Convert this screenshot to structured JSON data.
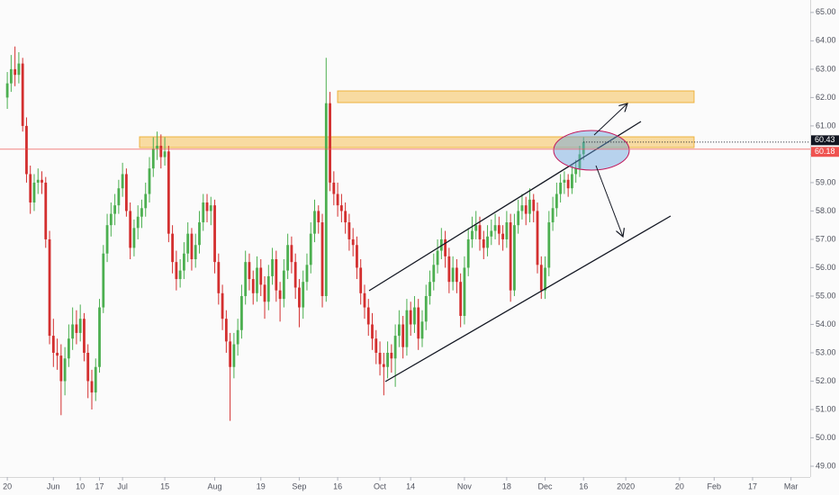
{
  "chart_data": {
    "type": "candlestick",
    "up_color": "#4caf50",
    "down_color": "#d32f2f",
    "open": [
      62.0,
      62.5,
      63.0,
      62.8,
      63.2,
      61.0,
      59.3,
      58.3,
      59.0,
      59.1,
      59.0,
      57.0,
      53.6,
      53.0,
      52.9,
      52.0,
      52.8,
      53.5,
      54.0,
      53.7,
      54.2,
      53.0,
      52.0,
      51.6,
      52.5,
      54.6,
      56.5,
      57.5,
      57.9,
      58.2,
      58.8,
      59.3,
      58.0,
      56.7,
      57.4,
      57.8,
      58.1,
      58.6,
      59.5,
      60.2,
      60.3,
      59.9,
      60.1,
      57.2,
      56.2,
      55.6,
      55.9,
      56.5,
      57.2,
      56.3,
      56.8,
      57.6,
      58.3,
      58.0,
      58.2,
      56.2,
      55.1,
      54.2,
      53.4,
      52.5,
      53.3,
      53.8,
      55.0,
      56.2,
      55.6,
      55.1,
      56.0,
      55.4,
      54.8,
      55.7,
      56.3,
      55.2,
      54.9,
      55.9,
      56.8,
      56.2,
      55.3,
      54.6,
      55.5,
      56.1,
      57.2,
      58.0,
      57.6,
      55.0,
      61.8,
      59.0,
      58.6,
      58.2,
      58.0,
      57.6,
      57.0,
      56.8,
      56.0,
      55.1,
      54.6,
      54.0,
      53.5,
      53.0,
      52.6,
      52.5,
      53.0,
      52.8,
      53.6,
      54.0,
      53.2,
      54.5,
      54.0,
      54.6,
      53.5,
      54.1,
      55.0,
      55.5,
      56.1,
      56.6,
      57.0,
      56.4,
      55.5,
      56.0,
      55.5,
      54.3,
      56.0,
      57.0,
      57.3,
      57.5,
      57.0,
      56.7,
      57.1,
      57.3,
      57.5,
      57.2,
      57.0,
      57.6,
      55.2,
      57.5,
      58.0,
      58.2,
      57.9,
      58.4,
      58.0,
      56.1,
      55.2,
      56.0,
      57.6,
      58.1,
      58.6,
      59.0,
      59.1,
      58.8,
      59.3,
      59.5,
      60.0
    ],
    "high": [
      62.9,
      63.5,
      63.8,
      63.6,
      63.4,
      61.3,
      59.6,
      59.3,
      59.5,
      59.4,
      59.2,
      57.3,
      54.2,
      53.5,
      53.3,
      53.2,
      54.0,
      54.6,
      54.5,
      54.7,
      54.4,
      53.3,
      52.4,
      52.8,
      54.9,
      56.8,
      57.9,
      58.3,
      58.6,
      59.1,
      59.7,
      59.5,
      58.3,
      57.7,
      58.2,
      58.4,
      59.0,
      59.9,
      60.6,
      60.8,
      60.7,
      60.6,
      60.3,
      57.5,
      56.6,
      56.3,
      56.9,
      57.6,
      57.4,
      57.2,
      58.0,
      58.6,
      58.6,
      58.5,
      58.4,
      56.5,
      55.4,
      54.5,
      53.7,
      53.7,
      54.2,
      55.4,
      56.6,
      56.5,
      55.9,
      56.4,
      56.3,
      55.7,
      56.1,
      56.7,
      56.6,
      55.5,
      56.3,
      57.2,
      57.1,
      56.5,
      55.6,
      55.9,
      56.5,
      57.6,
      58.4,
      58.2,
      57.9,
      63.4,
      62.2,
      59.4,
      59.0,
      58.6,
      58.3,
      57.9,
      57.4,
      57.1,
      56.3,
      55.4,
      54.9,
      54.4,
      53.8,
      53.4,
      53.0,
      53.4,
      53.3,
      54.0,
      54.5,
      54.3,
      54.9,
      54.8,
      55.0,
      54.9,
      54.5,
      55.4,
      55.9,
      56.5,
      57.0,
      57.4,
      57.3,
      56.7,
      56.4,
      56.3,
      55.8,
      56.4,
      57.4,
      57.8,
      58.0,
      57.8,
      57.3,
      57.5,
      57.7,
      57.9,
      57.8,
      57.5,
      58.0,
      57.9,
      57.9,
      58.4,
      58.6,
      58.5,
      58.8,
      58.6,
      58.3,
      56.4,
      56.4,
      58.0,
      58.5,
      59.0,
      59.3,
      59.4,
      59.3,
      59.6,
      59.8,
      60.3,
      60.6
    ],
    "low": [
      61.6,
      62.2,
      62.4,
      62.5,
      60.8,
      59.0,
      57.9,
      58.0,
      58.6,
      58.6,
      56.7,
      53.3,
      52.5,
      52.4,
      50.8,
      51.5,
      52.5,
      53.1,
      53.3,
      53.4,
      52.7,
      51.4,
      51.0,
      51.3,
      52.3,
      54.4,
      56.2,
      57.1,
      57.5,
      57.9,
      58.5,
      57.8,
      56.3,
      56.4,
      57.0,
      57.4,
      57.8,
      58.3,
      59.2,
      59.8,
      59.5,
      59.6,
      56.9,
      55.8,
      55.2,
      55.3,
      55.6,
      56.2,
      55.9,
      56.0,
      56.5,
      57.3,
      57.6,
      57.5,
      55.8,
      54.7,
      53.8,
      53.0,
      50.6,
      52.1,
      52.9,
      53.5,
      54.7,
      55.2,
      54.7,
      54.8,
      55.0,
      54.2,
      54.5,
      55.4,
      54.8,
      54.1,
      54.6,
      55.6,
      55.8,
      54.9,
      53.9,
      54.2,
      55.2,
      55.8,
      56.9,
      57.2,
      54.6,
      54.8,
      58.7,
      58.2,
      57.8,
      57.6,
      57.2,
      56.6,
      56.4,
      55.6,
      54.7,
      54.2,
      53.6,
      53.1,
      52.6,
      52.2,
      51.5,
      52.1,
      52.3,
      51.8,
      53.2,
      52.8,
      52.9,
      53.6,
      53.7,
      53.1,
      53.2,
      53.8,
      54.7,
      55.2,
      55.8,
      56.3,
      56.0,
      55.1,
      55.2,
      55.1,
      53.9,
      54.0,
      55.7,
      56.7,
      57.0,
      56.6,
      56.3,
      56.4,
      56.8,
      57.0,
      56.8,
      56.6,
      56.7,
      54.8,
      55.0,
      57.2,
      57.7,
      57.5,
      57.6,
      57.6,
      55.8,
      54.9,
      54.9,
      55.7,
      57.3,
      57.8,
      58.3,
      58.6,
      58.5,
      58.6,
      59.0,
      59.2,
      59.8
    ],
    "close": [
      62.5,
      63.0,
      62.8,
      63.2,
      61.0,
      59.3,
      58.3,
      59.0,
      59.1,
      59.0,
      57.0,
      53.6,
      53.0,
      52.9,
      52.0,
      52.8,
      53.5,
      54.0,
      53.7,
      54.2,
      53.0,
      52.0,
      51.6,
      52.5,
      54.6,
      56.5,
      57.5,
      57.9,
      58.2,
      58.8,
      59.3,
      58.0,
      56.7,
      57.4,
      57.8,
      58.1,
      58.6,
      59.5,
      60.2,
      60.3,
      59.9,
      60.1,
      57.2,
      56.2,
      55.6,
      55.9,
      56.5,
      57.2,
      56.3,
      56.8,
      57.6,
      58.3,
      58.0,
      58.2,
      56.2,
      55.1,
      54.2,
      53.4,
      52.5,
      53.3,
      53.8,
      55.0,
      56.2,
      55.6,
      55.1,
      56.0,
      55.4,
      54.8,
      55.7,
      56.3,
      55.2,
      54.9,
      55.9,
      56.8,
      56.2,
      55.3,
      54.6,
      55.5,
      56.1,
      57.2,
      58.0,
      57.6,
      55.0,
      61.8,
      59.0,
      58.6,
      58.2,
      58.0,
      57.6,
      57.0,
      56.8,
      56.0,
      55.1,
      54.6,
      54.0,
      53.5,
      53.0,
      52.6,
      52.5,
      53.0,
      52.8,
      53.6,
      54.0,
      53.2,
      54.5,
      54.0,
      54.6,
      53.5,
      54.1,
      55.0,
      55.5,
      56.1,
      56.6,
      57.0,
      56.4,
      55.5,
      56.0,
      55.5,
      54.3,
      56.0,
      57.0,
      57.3,
      57.5,
      57.0,
      56.7,
      57.1,
      57.3,
      57.5,
      57.2,
      57.0,
      57.6,
      55.2,
      57.5,
      58.0,
      58.2,
      57.9,
      58.4,
      58.0,
      56.1,
      55.2,
      56.0,
      57.6,
      58.1,
      58.6,
      59.0,
      59.1,
      58.8,
      59.3,
      59.5,
      60.0,
      60.43
    ],
    "xlim": [
      -1.9,
      209
    ],
    "xticks": [
      {
        "value": 0,
        "label": "20"
      },
      {
        "value": 12,
        "label": "Jun"
      },
      {
        "value": 19,
        "label": "10"
      },
      {
        "value": 24,
        "label": "17"
      },
      {
        "value": 30,
        "label": "Jul"
      },
      {
        "value": 41,
        "label": "15"
      },
      {
        "value": 54,
        "label": "Aug"
      },
      {
        "value": 66,
        "label": "19"
      },
      {
        "value": 76,
        "label": "Sep"
      },
      {
        "value": 86,
        "label": "16"
      },
      {
        "value": 97,
        "label": "Oct"
      },
      {
        "value": 105,
        "label": "14"
      },
      {
        "value": 119,
        "label": "Nov"
      },
      {
        "value": 130,
        "label": "18"
      },
      {
        "value": 140,
        "label": "Dec"
      },
      {
        "value": 150,
        "label": "16"
      },
      {
        "value": 161,
        "label": "2020"
      },
      {
        "value": 175,
        "label": "20"
      },
      {
        "value": 184,
        "label": "Feb"
      },
      {
        "value": 194,
        "label": "17"
      },
      {
        "value": 204,
        "label": "Mar"
      }
    ],
    "ylim": [
      48.62,
      65.44
    ],
    "yticks": [
      {
        "value": 49,
        "label": "49.00"
      },
      {
        "value": 50,
        "label": "50.00"
      },
      {
        "value": 51,
        "label": "51.00"
      },
      {
        "value": 52,
        "label": "52.00"
      },
      {
        "value": 53,
        "label": "53.00"
      },
      {
        "value": 54,
        "label": "54.00"
      },
      {
        "value": 55,
        "label": "55.00"
      },
      {
        "value": 56,
        "label": "56.00"
      },
      {
        "value": 57,
        "label": "57.00"
      },
      {
        "value": 58,
        "label": "58.00"
      },
      {
        "value": 59,
        "label": "59.00"
      },
      {
        "value": 60,
        "label": "60.00"
      },
      {
        "value": 61,
        "label": "61.00"
      },
      {
        "value": 62,
        "label": "62.00"
      },
      {
        "value": 63,
        "label": "63.00"
      },
      {
        "value": 64,
        "label": "64.00"
      },
      {
        "value": 65,
        "label": "65.00"
      }
    ],
    "price_lines": [
      {
        "value": 60.43,
        "label": "60.43",
        "color": "#131722",
        "style": "dotted"
      },
      {
        "value": 60.18,
        "label": "60.18",
        "color": "#ef5350",
        "style": "solid"
      }
    ],
    "grid": false
  }
}
